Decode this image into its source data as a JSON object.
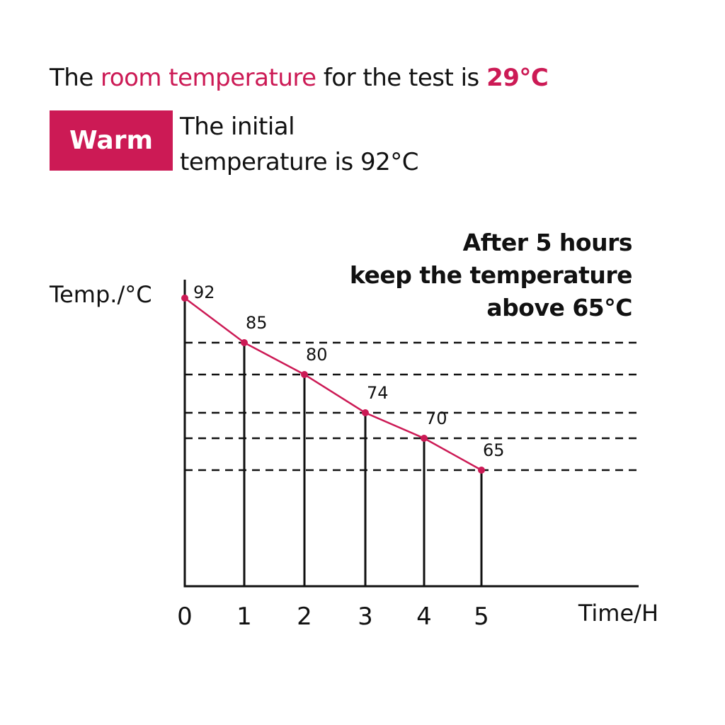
{
  "header": {
    "line_prefix": "The ",
    "line_accent": "room temperature",
    "line_middle": " for the test is ",
    "line_value": "29°C"
  },
  "badge": {
    "label": "Warm"
  },
  "initial": {
    "line1": "The initial",
    "line2": "temperature is 92°C"
  },
  "note": {
    "line1": "After 5 hours",
    "line2": "keep the temperature",
    "line3": "above 65°C"
  },
  "colors": {
    "accent": "#cc1a55",
    "ink": "#111111"
  },
  "chart_data": {
    "type": "line",
    "xlabel": "Time/H",
    "ylabel": "Temp./°C",
    "x": [
      0,
      1,
      2,
      3,
      4,
      5
    ],
    "x_tick_labels": [
      "0",
      "1",
      "2",
      "3",
      "4",
      "5"
    ],
    "values": [
      92,
      85,
      80,
      74,
      70,
      65
    ],
    "data_labels": [
      "92",
      "85",
      "80",
      "74",
      "70",
      "65"
    ],
    "grid": "dashed horizontal reference lines at each point from 85 down to 65",
    "line_color": "#cc1a55"
  }
}
